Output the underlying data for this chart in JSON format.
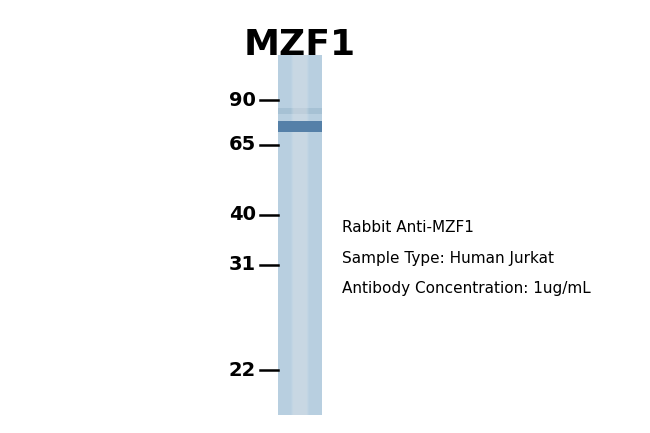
{
  "title": "MZF1",
  "title_fontsize": 26,
  "title_fontweight": "bold",
  "background_color": "#ffffff",
  "lane_color_main": "#b8cfe0",
  "band_main_color": "#5580a8",
  "band_faint_color": "#9ab8cc",
  "marker_labels": [
    "90",
    "65",
    "40",
    "31",
    "22"
  ],
  "marker_fontsize": 14,
  "marker_fontweight": "bold",
  "annotation_lines": [
    "Rabbit Anti-MZF1",
    "Sample Type: Human Jurkat",
    "Antibody Concentration: 1ug/mL"
  ],
  "annotation_fontsize": 11
}
